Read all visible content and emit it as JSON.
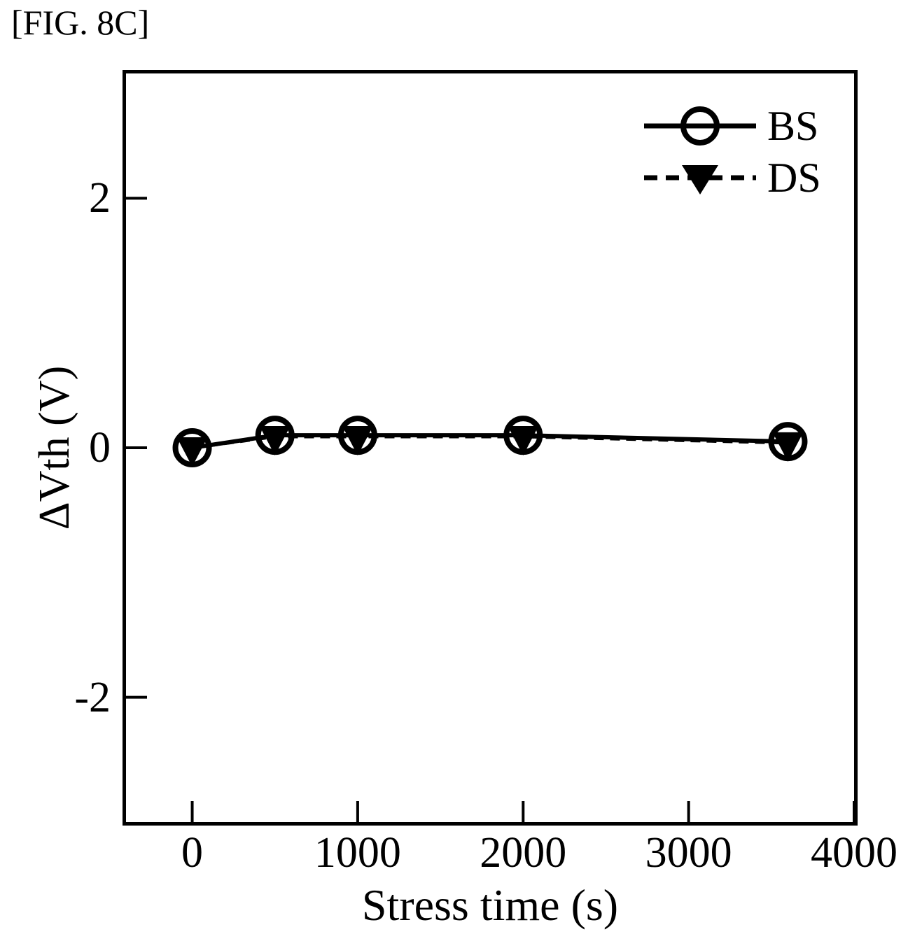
{
  "figure": {
    "label": "[FIG. 8C]"
  },
  "colors": {
    "foreground": "#000000",
    "background": "#ffffff"
  },
  "chart_data": {
    "type": "line",
    "title": "",
    "xlabel": "Stress time (s)",
    "ylabel": "ΔVth (V)",
    "xlim": [
      -400,
      4000
    ],
    "ylim": [
      -3,
      3
    ],
    "x_ticks": [
      0,
      1000,
      2000,
      3000,
      4000
    ],
    "y_ticks": [
      2,
      0,
      -2
    ],
    "x": [
      0,
      500,
      1000,
      2000,
      3600
    ],
    "series": [
      {
        "name": "BS",
        "marker": "open-circle",
        "line": "solid",
        "values": [
          0.0,
          0.1,
          0.1,
          0.1,
          0.05
        ]
      },
      {
        "name": "DS",
        "marker": "filled-triangle-down",
        "line": "dashed",
        "values": [
          0.0,
          0.09,
          0.09,
          0.09,
          0.04
        ]
      }
    ],
    "legend_position": "top-right",
    "grid": false
  }
}
